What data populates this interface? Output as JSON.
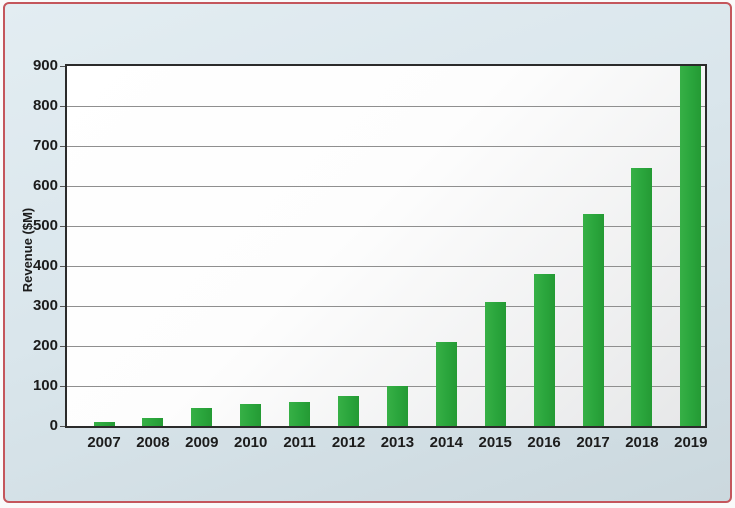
{
  "chart_data": {
    "type": "bar",
    "title": "",
    "xlabel": "",
    "ylabel": "Revenue ($M)",
    "categories": [
      "2007",
      "2008",
      "2009",
      "2010",
      "2011",
      "2012",
      "2013",
      "2014",
      "2015",
      "2016",
      "2017",
      "2018",
      "2019"
    ],
    "values": [
      10,
      20,
      45,
      55,
      60,
      75,
      100,
      210,
      310,
      380,
      530,
      645,
      900
    ],
    "ylim": [
      0,
      900
    ],
    "yticks": [
      0,
      100,
      200,
      300,
      400,
      500,
      600,
      700,
      800,
      900
    ],
    "grid": true,
    "legend": "none",
    "bar_color": "#2aa53c"
  },
  "colors": {
    "background": "#dae6ec",
    "outer_border": "#c4565c",
    "plot_frame": "#2b2b2b",
    "gridline": "#8f8f8f",
    "text": "#1c1c1c",
    "bar": "#2aa53c"
  }
}
